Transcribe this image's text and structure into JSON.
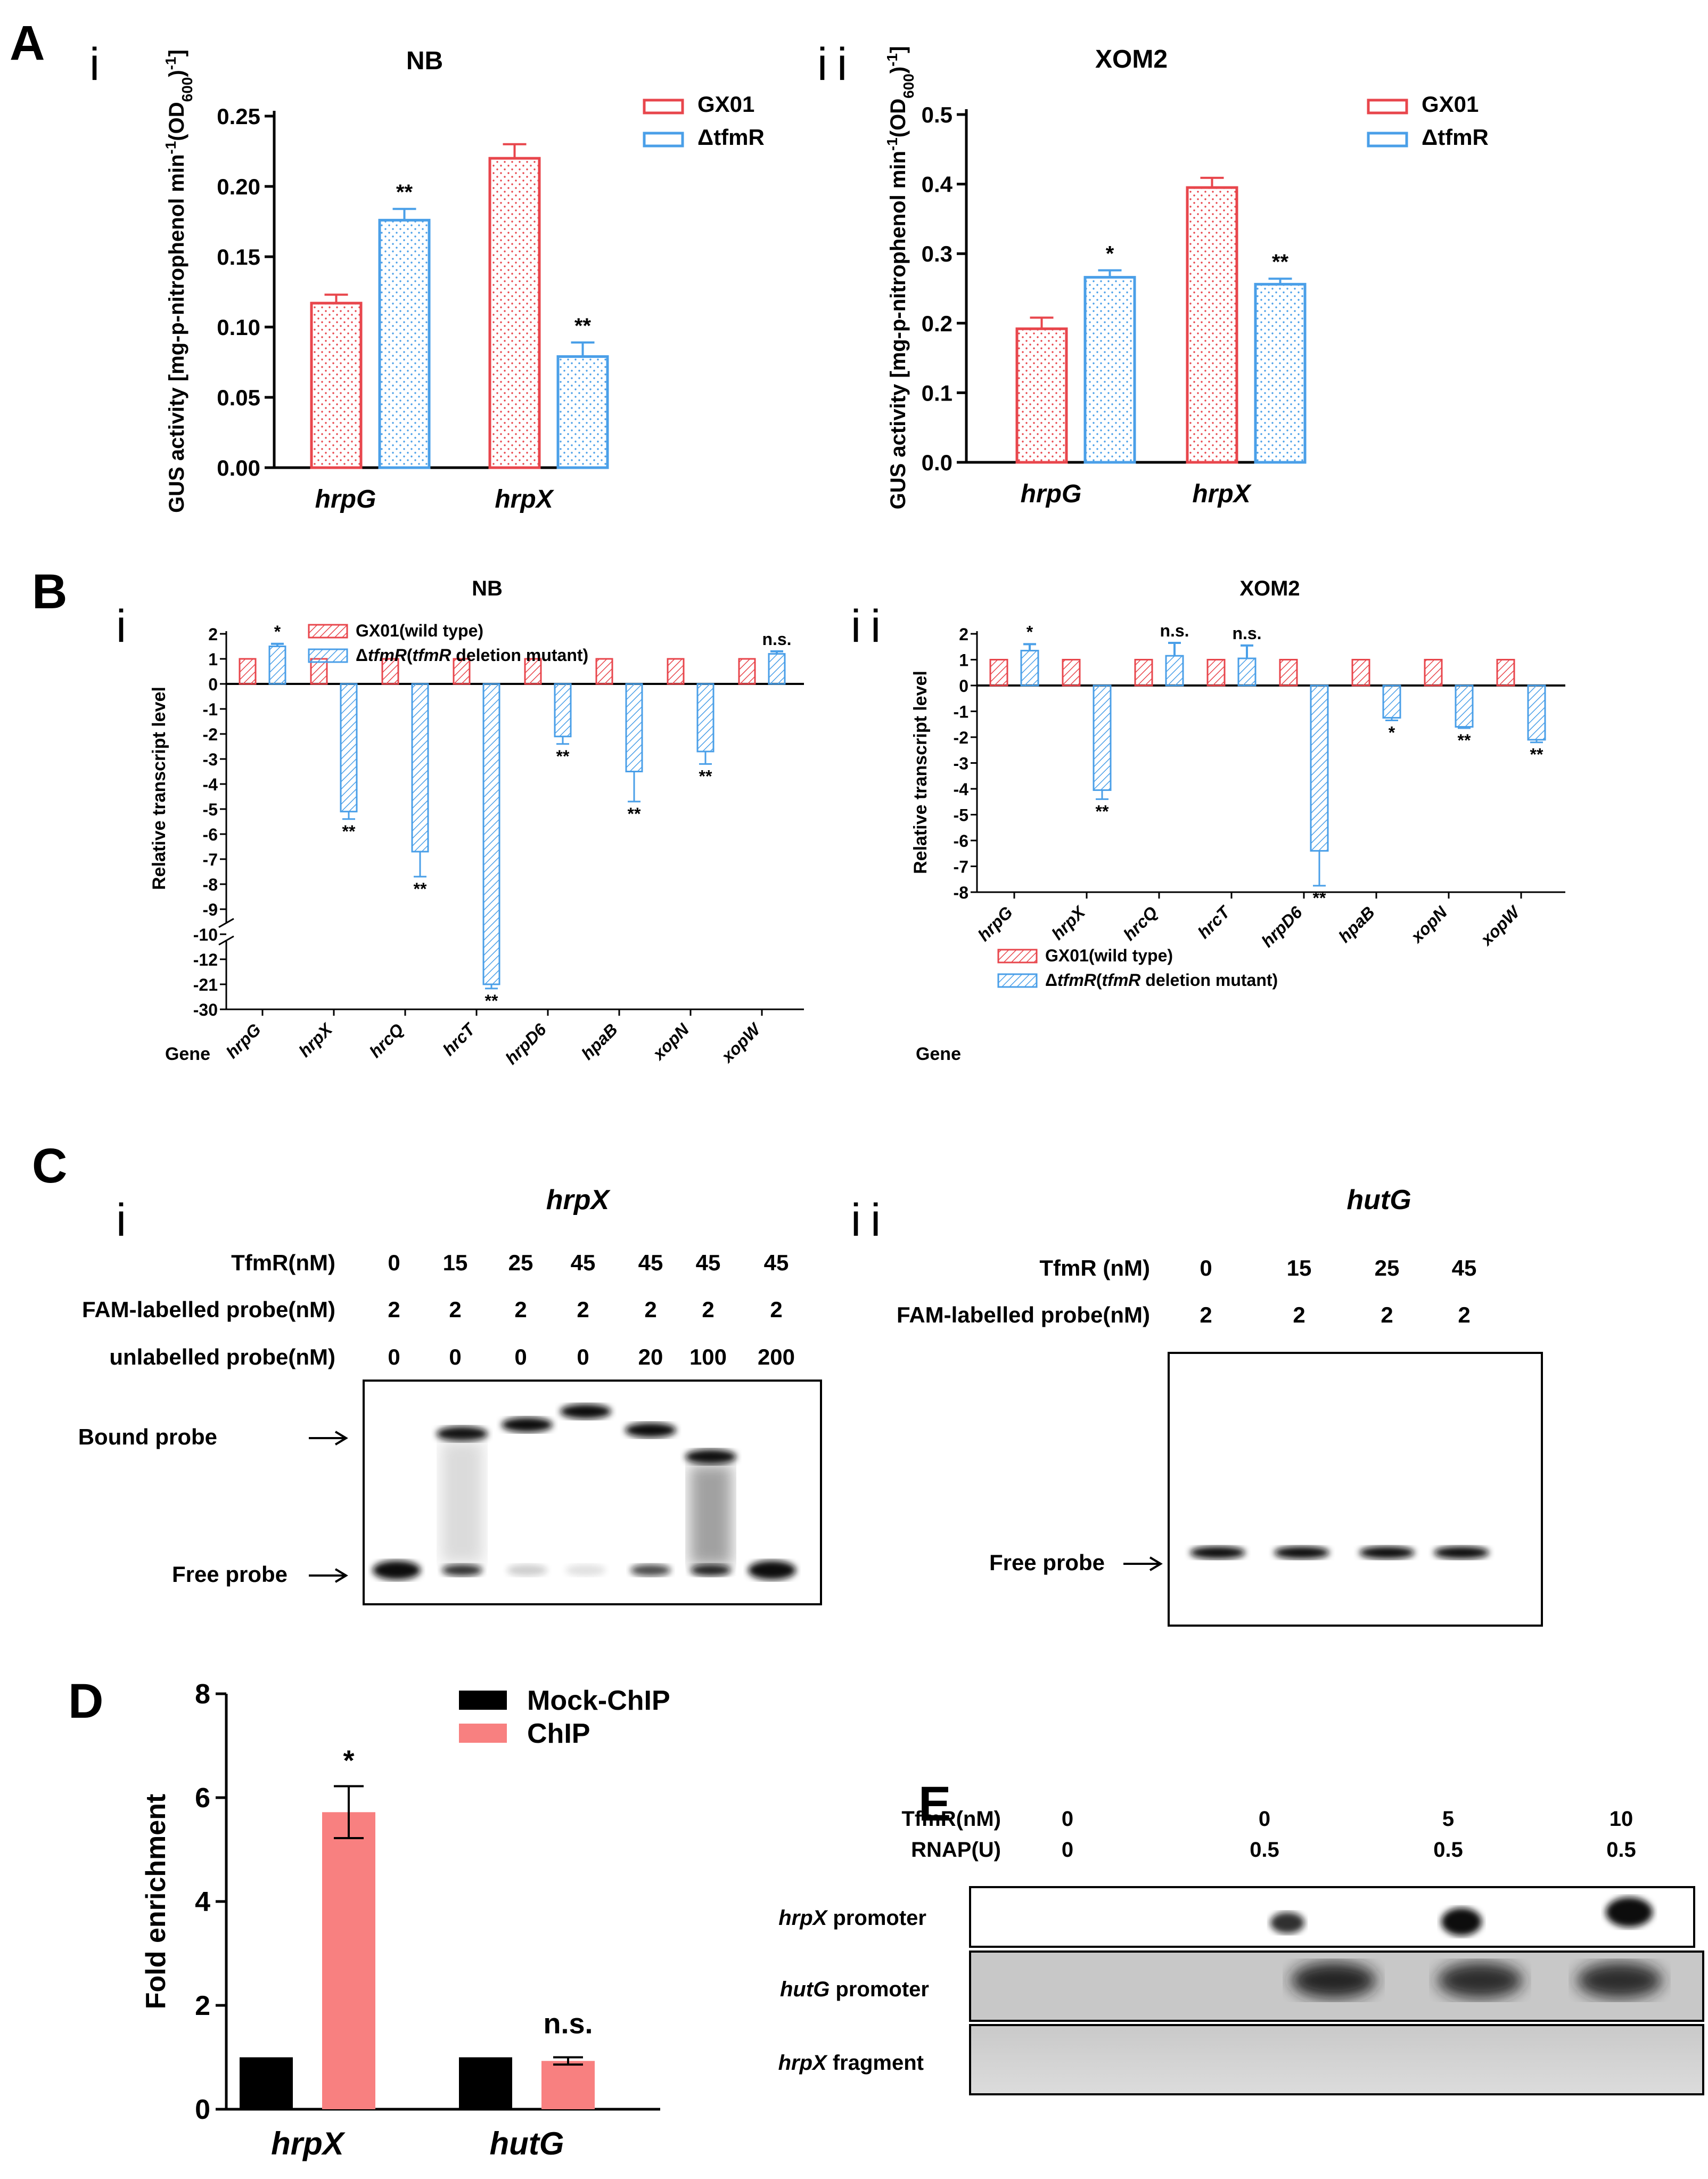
{
  "colors": {
    "gx01": "#e8464c",
    "tfmr": "#4a9fe8",
    "black": "#000000",
    "chip": "#f88080"
  },
  "panel_letters": {
    "A": "A",
    "B": "B",
    "C": "C",
    "D": "D",
    "E": "E"
  },
  "sub_labels": {
    "Ai": "i",
    "Aii": "ii",
    "Bi": "i",
    "Bii": "ii",
    "Ci": "i",
    "Cii": "ii"
  },
  "chart_data": [
    {
      "id": "A-i",
      "type": "bar",
      "title": "NB",
      "ylabel": "GUS activity [mg-p-nitrophenol min-1(OD600)-1]",
      "categories": [
        "hrpG",
        "hrpX"
      ],
      "ylim": [
        0,
        0.25
      ],
      "yticks": [
        "0.00",
        "0.05",
        "0.10",
        "0.15",
        "0.20",
        "0.25"
      ],
      "series": [
        {
          "name": "GX01",
          "values": [
            0.117,
            0.22
          ],
          "errors": [
            0.006,
            0.01
          ],
          "sig": [
            "",
            ""
          ]
        },
        {
          "name": "ΔtfmR",
          "values": [
            0.176,
            0.079
          ],
          "errors": [
            0.008,
            0.01
          ],
          "sig": [
            "**",
            "**"
          ]
        }
      ],
      "legend": "top-right"
    },
    {
      "id": "A-ii",
      "type": "bar",
      "title": "XOM2",
      "ylabel": "GUS activity [mg-p-nitrophenol min-1(OD600)-1]",
      "categories": [
        "hrpG",
        "hrpX"
      ],
      "ylim": [
        0,
        0.5
      ],
      "yticks": [
        "0.0",
        "0.1",
        "0.2",
        "0.3",
        "0.4",
        "0.5"
      ],
      "series": [
        {
          "name": "GX01",
          "values": [
            0.192,
            0.395
          ],
          "errors": [
            0.016,
            0.014
          ],
          "sig": [
            "",
            ""
          ]
        },
        {
          "name": "ΔtfmR",
          "values": [
            0.266,
            0.256
          ],
          "errors": [
            0.01,
            0.008
          ],
          "sig": [
            "*",
            "**"
          ]
        }
      ],
      "legend": "top-right"
    },
    {
      "id": "B-i",
      "type": "bar",
      "title": "NB",
      "ylabel": "Relative transcript level",
      "xlabel": "Gene",
      "categories": [
        "hrpG",
        "hrpX",
        "hrcQ",
        "hrcT",
        "hrpD6",
        "hpaB",
        "xopN",
        "xopW"
      ],
      "yticks": [
        "2",
        "1",
        "0",
        "-1",
        "-2",
        "-3",
        "-4",
        "-5",
        "-6",
        "-7",
        "-8",
        "-9",
        "-10",
        "-12",
        "-21",
        "-30"
      ],
      "series": [
        {
          "name": "GX01(wild type)",
          "values": [
            1,
            1,
            1,
            1,
            1,
            1,
            1,
            1
          ]
        },
        {
          "name": "ΔtfmR(tfmR deletion mutant)",
          "values": [
            1.5,
            -5.1,
            -6.7,
            -21,
            -2.1,
            -3.5,
            -2.7,
            1.2
          ],
          "errors": [
            0.1,
            0.3,
            1.0,
            1.5,
            0.3,
            1.2,
            0.5,
            0.1
          ],
          "sig": [
            "*",
            "**",
            "**",
            "**",
            "**",
            "**",
            "**",
            "n.s."
          ]
        }
      ],
      "legend": "top-left"
    },
    {
      "id": "B-ii",
      "type": "bar",
      "title": "XOM2",
      "ylabel": "Relative transcript level",
      "xlabel": "Gene",
      "categories": [
        "hrpG",
        "hrpX",
        "hrcQ",
        "hrcT",
        "hrpD6",
        "hpaB",
        "xopN",
        "xopW"
      ],
      "ylim": [
        -8,
        2
      ],
      "yticks": [
        "2",
        "1",
        "0",
        "-1",
        "-2",
        "-3",
        "-4",
        "-5",
        "-6",
        "-7",
        "-8"
      ],
      "series": [
        {
          "name": "GX01(wild type)",
          "values": [
            1,
            1,
            1,
            1,
            1,
            1,
            1,
            1
          ]
        },
        {
          "name": "ΔtfmR(tfmR deletion mutant)",
          "values": [
            1.35,
            -4.05,
            1.15,
            1.05,
            -6.4,
            -1.25,
            -1.6,
            -2.1
          ],
          "errors": [
            0.25,
            0.35,
            0.5,
            0.5,
            1.35,
            0.1,
            0.05,
            0.1
          ],
          "sig": [
            "*",
            "**",
            "n.s.",
            "n.s.",
            "**",
            "*",
            "**",
            "**"
          ]
        }
      ],
      "legend": "bottom-left"
    },
    {
      "id": "D",
      "type": "bar",
      "ylabel": "Fold enrichment",
      "categories": [
        "hrpX",
        "hutG"
      ],
      "ylim": [
        0,
        8
      ],
      "yticks": [
        "0",
        "2",
        "4",
        "6",
        "8"
      ],
      "series": [
        {
          "name": "Mock-ChIP",
          "values": [
            1,
            1
          ]
        },
        {
          "name": "ChIP",
          "values": [
            5.72,
            0.93
          ],
          "errors": [
            0.5,
            0.07
          ],
          "sig": [
            "*",
            "n.s."
          ]
        }
      ],
      "legend": "top-right"
    }
  ],
  "emsa_i": {
    "gene": "hrpX",
    "row_labels": [
      "TfmR(nM)",
      "FAM-labelled probe(nM)",
      "unlabelled probe(nM)"
    ],
    "tfmr": [
      "0",
      "15",
      "25",
      "45",
      "45",
      "45",
      "45"
    ],
    "probe": [
      "2",
      "2",
      "2",
      "2",
      "2",
      "2",
      "2"
    ],
    "unlabelled": [
      "0",
      "0",
      "0",
      "0",
      "20",
      "100",
      "200"
    ],
    "bound_label": "Bound probe",
    "free_label": "Free probe"
  },
  "emsa_ii": {
    "gene": "hutG",
    "row_labels": [
      "TfmR (nM)",
      "FAM-labelled probe(nM)"
    ],
    "tfmr": [
      "0",
      "15",
      "25",
      "45"
    ],
    "probe": [
      "2",
      "2",
      "2",
      "2"
    ],
    "free_label": "Free probe"
  },
  "panel_e": {
    "row_labels": [
      "TfmR(nM)",
      "RNAP(U)"
    ],
    "tfmr": [
      "0",
      "0",
      "5",
      "10"
    ],
    "rnap": [
      "0",
      "0.5",
      "0.5",
      "0.5"
    ],
    "blots": [
      {
        "gene": "hrpX",
        "suffix": " promoter"
      },
      {
        "gene": "hutG",
        "suffix": " promoter"
      },
      {
        "gene": "hrpX",
        "suffix": " fragment"
      }
    ]
  }
}
